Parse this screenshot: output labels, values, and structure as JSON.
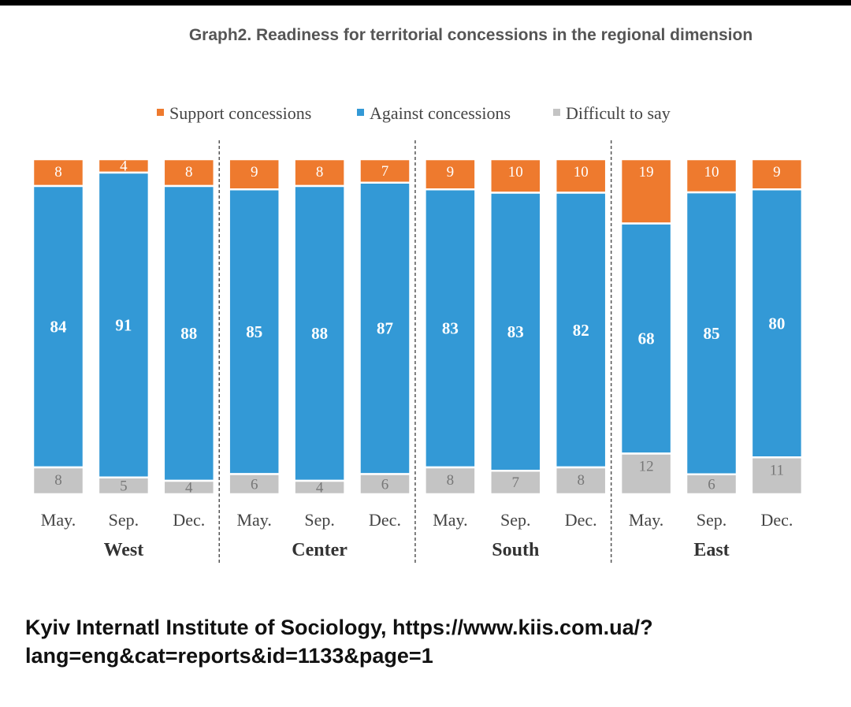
{
  "title": "Graph2. Readiness for territorial concessions in the regional dimension",
  "source_lines": [
    "Kyiv Internatl Institute of Sociology, https://www.kiis.com.ua/?",
    "lang=eng&cat=reports&id=1133&page=1"
  ],
  "colors": {
    "support": "#EE7A2E",
    "against": "#3399D6",
    "difficult": "#C4C4C4",
    "bar_label": "#FFFFFF",
    "text": "#333333"
  },
  "chart_data": {
    "type": "bar",
    "stacked": true,
    "percent": true,
    "ylim": [
      0,
      100
    ],
    "legend_position": "top-center",
    "groups": [
      "West",
      "Center",
      "South",
      "East"
    ],
    "categories": [
      "May.",
      "Sep.",
      "Dec.",
      "May.",
      "Sep.",
      "Dec.",
      "May.",
      "Sep.",
      "Dec.",
      "May.",
      "Sep.",
      "Dec."
    ],
    "series": [
      {
        "name": "Support concessions",
        "color": "#EE7A2E",
        "values": [
          8,
          4,
          8,
          9,
          8,
          7,
          9,
          10,
          10,
          19,
          10,
          9
        ]
      },
      {
        "name": "Against concessions",
        "color": "#3399D6",
        "values": [
          84,
          91,
          88,
          85,
          88,
          87,
          83,
          83,
          82,
          68,
          85,
          80
        ]
      },
      {
        "name": "Difficult to say",
        "color": "#C4C4C4",
        "values": [
          8,
          5,
          4,
          6,
          4,
          6,
          8,
          7,
          8,
          12,
          6,
          11
        ]
      }
    ]
  }
}
